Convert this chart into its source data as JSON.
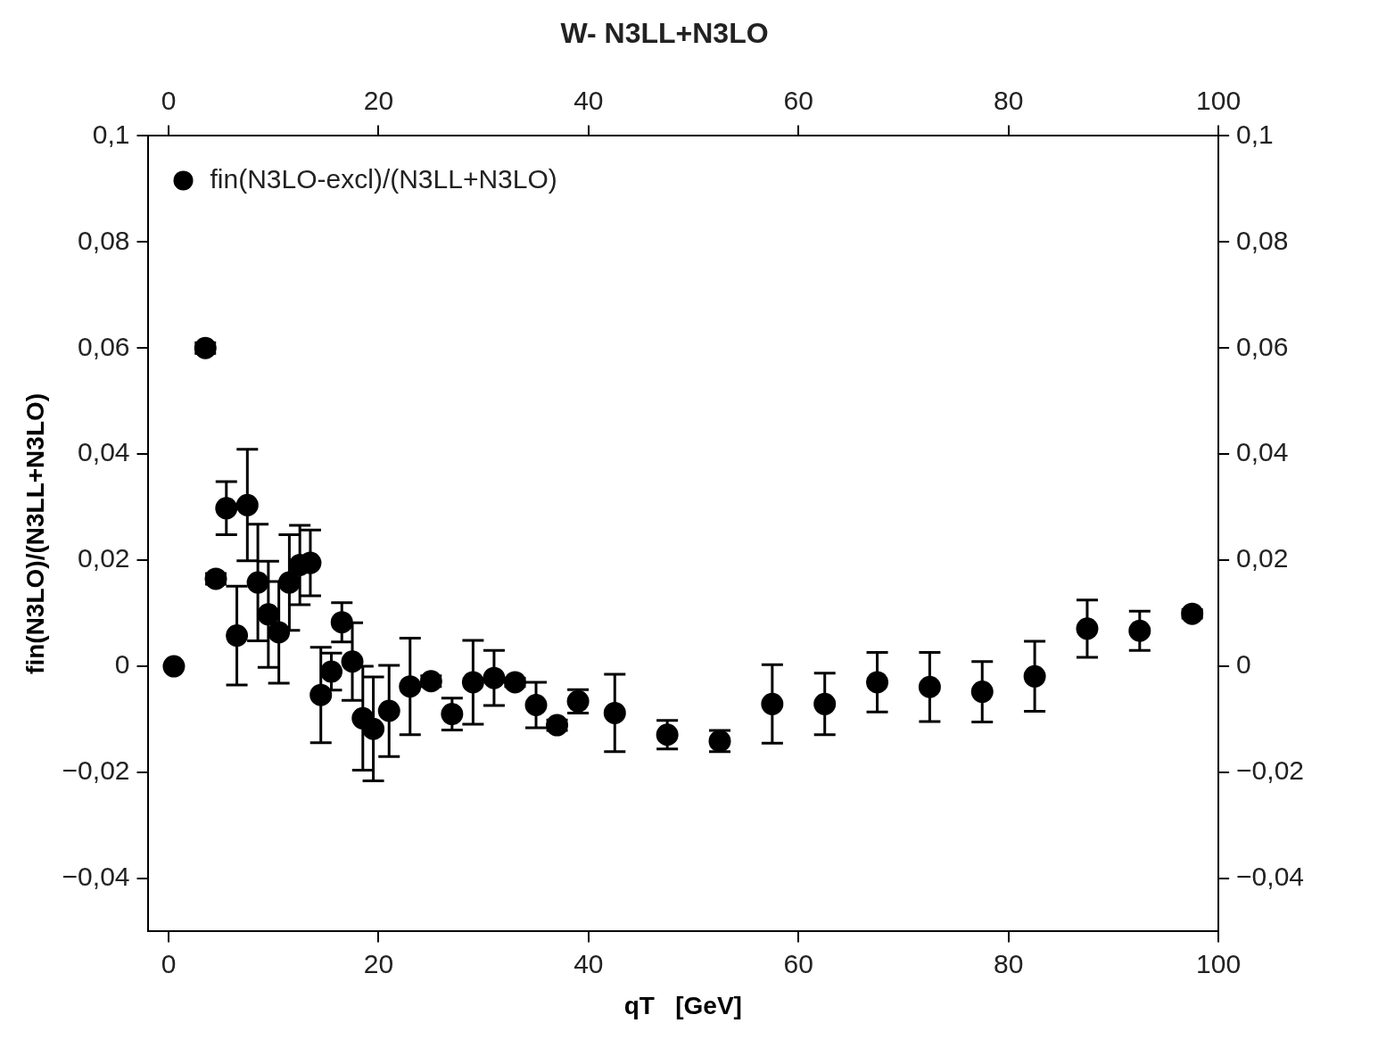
{
  "chart_data": {
    "type": "scatter",
    "title": "W- N3LL+N3LO",
    "xlabel": "qT   [GeV]",
    "ylabel": "fin(N3LO)/(N3LL+N3LO)",
    "legend": "top left",
    "marker": "circle",
    "grid": false,
    "series": [
      {
        "name": "fin(N3LO-excl)/(N3LL+N3LO)",
        "color": "#000000",
        "x": [
          0.5,
          3.5,
          4.5,
          5.5,
          6.5,
          7.5,
          8.5,
          9.5,
          10.5,
          11.5,
          12.5,
          13.5,
          14.5,
          15.5,
          16.5,
          17.5,
          18.5,
          19.5,
          21,
          23,
          25,
          27,
          29,
          31,
          33,
          35,
          37,
          39,
          42.5,
          47.5,
          52.5,
          57.5,
          62.5,
          67.5,
          72.5,
          77.5,
          82.5,
          87.5,
          92.5,
          97.5
        ],
        "values": [
          0,
          0.06,
          0.0165,
          0.0298,
          0.0058,
          0.0304,
          0.0158,
          0.0098,
          0.0064,
          0.0158,
          0.0191,
          0.0195,
          -0.0054,
          -0.001,
          0.0083,
          0.0009,
          -0.0098,
          -0.0118,
          -0.0084,
          -0.0038,
          -0.0028,
          -0.009,
          -0.003,
          -0.0022,
          -0.003,
          -0.0073,
          -0.0111,
          -0.0066,
          -0.0088,
          -0.0129,
          -0.0141,
          -0.0071,
          -0.0071,
          -0.003,
          -0.0039,
          -0.0048,
          -0.0019,
          0.0071,
          0.0067,
          0.0099
        ],
        "errors": [
          null,
          0.001,
          0.001,
          0.005,
          0.0093,
          0.0105,
          0.011,
          0.01,
          0.0096,
          0.009,
          0.0075,
          0.0062,
          0.009,
          0.0035,
          0.0037,
          0.0073,
          0.0098,
          0.0098,
          0.0086,
          0.0091,
          0.001,
          0.003,
          0.0079,
          0.0052,
          0.0008,
          0.0043,
          0.001,
          0.0022,
          0.0073,
          0.0027,
          0.002,
          0.0074,
          0.0058,
          0.0056,
          0.0065,
          0.0057,
          0.0066,
          0.0054,
          0.0037,
          0.0008
        ]
      }
    ],
    "xlim": [
      -2,
      100
    ],
    "xticks": [
      0,
      20,
      40,
      60,
      80,
      100
    ],
    "x2lim": [
      -2,
      100
    ],
    "x2ticks": [
      0,
      20,
      40,
      60,
      80,
      100
    ],
    "ylim": [
      -0.05,
      0.1
    ],
    "yticks": [
      {
        "value": -0.04,
        "label": "−0,04"
      },
      {
        "value": -0.02,
        "label": "−0,02"
      },
      {
        "value": 0,
        "label": "0"
      },
      {
        "value": 0.02,
        "label": "0,02"
      },
      {
        "value": 0.04,
        "label": "0,04"
      },
      {
        "value": 0.06,
        "label": "0,06"
      },
      {
        "value": 0.08,
        "label": "0,08"
      },
      {
        "value": 0.1,
        "label": "0,1"
      }
    ],
    "y2lim": [
      -0.05,
      0.1
    ],
    "y2ticks": [
      {
        "value": -0.04,
        "label": "−0,04"
      },
      {
        "value": -0.02,
        "label": "−0,02"
      },
      {
        "value": 0,
        "label": "0"
      },
      {
        "value": 0.02,
        "label": "0,02"
      },
      {
        "value": 0.04,
        "label": "0,04"
      },
      {
        "value": 0.06,
        "label": "0,06"
      },
      {
        "value": 0.08,
        "label": "0,08"
      },
      {
        "value": 0.1,
        "label": "0,1"
      }
    ]
  }
}
